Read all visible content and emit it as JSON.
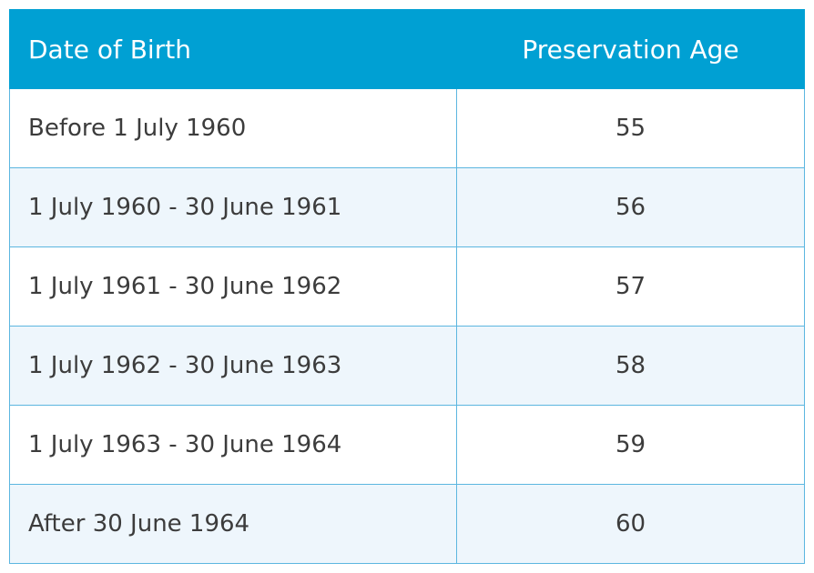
{
  "table": {
    "header": [
      "Date of Birth",
      "Preservation Age"
    ],
    "rows": [
      [
        "Before 1 July 1960",
        "55"
      ],
      [
        "1 July 1960 - 30 June 1961",
        "56"
      ],
      [
        "1 July 1961 - 30 June 1962",
        "57"
      ],
      [
        "1 July 1962 - 30 June 1963",
        "58"
      ],
      [
        "1 July 1963 - 30 June 1964",
        "59"
      ],
      [
        "After 30 June 1964",
        "60"
      ]
    ]
  }
}
